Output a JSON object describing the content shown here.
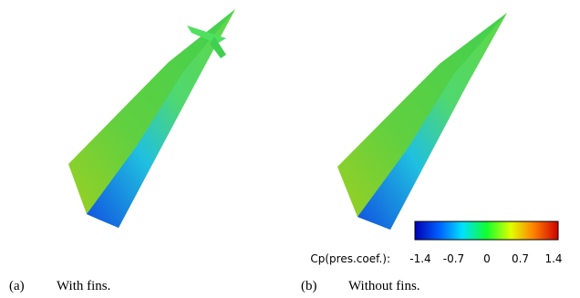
{
  "panels": [
    {
      "label": "(a)",
      "caption": "With fins."
    },
    {
      "label": "(b)",
      "caption": "Without fins."
    }
  ],
  "colorbar": {
    "label": "Cp(pres.coef.):",
    "lim": [
      -1.4,
      1.4
    ],
    "ticks": [
      -1.4,
      -0.7,
      0,
      0.7,
      1.4
    ]
  }
}
